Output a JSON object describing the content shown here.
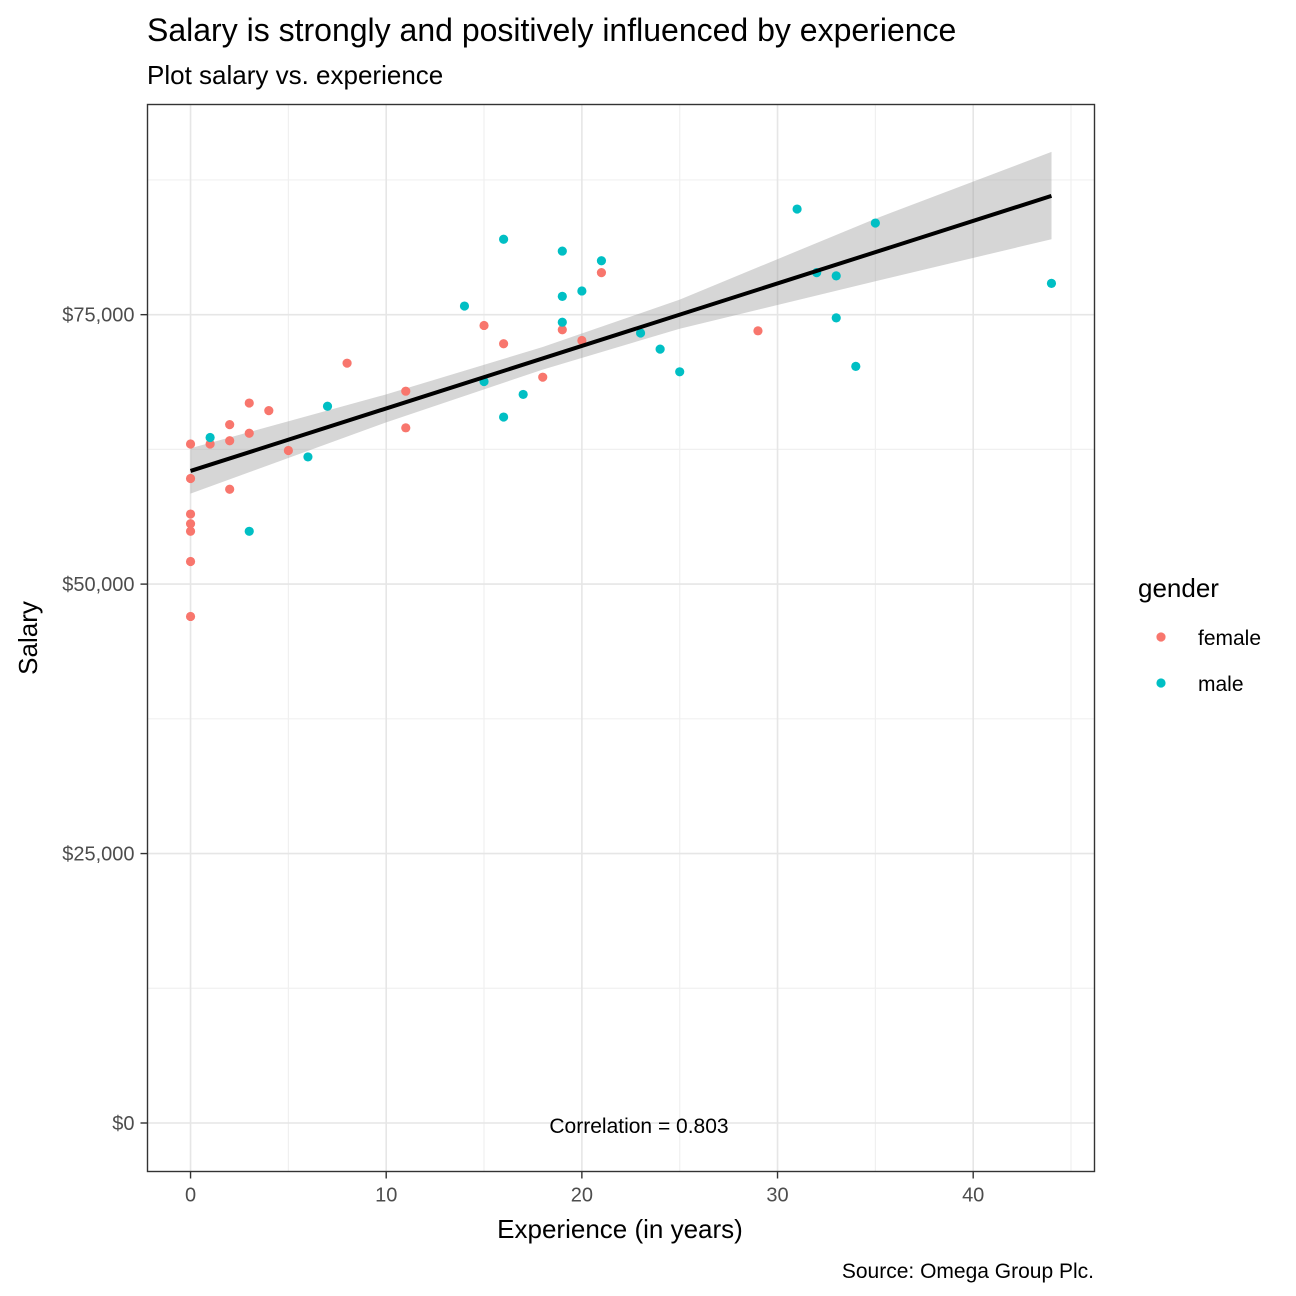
{
  "chart_data": {
    "type": "scatter",
    "title": "Salary is strongly and positively influenced by experience",
    "subtitle": "Plot salary vs. experience",
    "xlabel": "Experience (in years)",
    "ylabel": "Salary",
    "caption": "Source: Omega Group Plc.",
    "annotation": "Correlation =  0.803",
    "xlim": [
      -2.2,
      46.2
    ],
    "ylim": [
      -4500,
      94500
    ],
    "x_ticks": [
      0,
      10,
      20,
      30,
      40
    ],
    "x_tick_labels": [
      "0",
      "10",
      "20",
      "30",
      "40"
    ],
    "y_ticks": [
      0,
      25000,
      50000,
      75000
    ],
    "y_tick_labels": [
      "$0",
      "$25,000",
      "$50,000",
      "$75,000"
    ],
    "grid": true,
    "legend": {
      "title": "gender",
      "position": "right"
    },
    "colors": {
      "female": "#F8766D",
      "male": "#00BFC4",
      "fit_line": "#000000",
      "ribbon": "#999999"
    },
    "trend_line": {
      "intercept": 60500,
      "slope": 580,
      "x_range": [
        0,
        44
      ]
    },
    "confidence_band": [
      {
        "x": 0,
        "lower": 58400,
        "upper": 62600
      },
      {
        "x": 10,
        "lower": 65000,
        "upper": 67600
      },
      {
        "x": 18,
        "lower": 69900,
        "upper": 72000
      },
      {
        "x": 25,
        "lower": 73700,
        "upper": 76400
      },
      {
        "x": 35,
        "lower": 78100,
        "upper": 83900
      },
      {
        "x": 44,
        "lower": 82000,
        "upper": 90100
      }
    ],
    "series": [
      {
        "name": "female",
        "points": [
          {
            "x": 0,
            "y": 63000
          },
          {
            "x": 0,
            "y": 59800
          },
          {
            "x": 0,
            "y": 56500
          },
          {
            "x": 0,
            "y": 55600
          },
          {
            "x": 0,
            "y": 54900
          },
          {
            "x": 0,
            "y": 52100
          },
          {
            "x": 0,
            "y": 47000
          },
          {
            "x": 1,
            "y": 63000
          },
          {
            "x": 2,
            "y": 64800
          },
          {
            "x": 2,
            "y": 63300
          },
          {
            "x": 2,
            "y": 58800
          },
          {
            "x": 3,
            "y": 66800
          },
          {
            "x": 3,
            "y": 64000
          },
          {
            "x": 4,
            "y": 66100
          },
          {
            "x": 5,
            "y": 62400
          },
          {
            "x": 8,
            "y": 70500
          },
          {
            "x": 11,
            "y": 67900
          },
          {
            "x": 11,
            "y": 64500
          },
          {
            "x": 15,
            "y": 74000
          },
          {
            "x": 16,
            "y": 72300
          },
          {
            "x": 18,
            "y": 69200
          },
          {
            "x": 19,
            "y": 73600
          },
          {
            "x": 20,
            "y": 72600
          },
          {
            "x": 21,
            "y": 78900
          },
          {
            "x": 29,
            "y": 73500
          }
        ]
      },
      {
        "name": "male",
        "points": [
          {
            "x": 1,
            "y": 63600
          },
          {
            "x": 3,
            "y": 54900
          },
          {
            "x": 6,
            "y": 61800
          },
          {
            "x": 7,
            "y": 66500
          },
          {
            "x": 14,
            "y": 75800
          },
          {
            "x": 15,
            "y": 68800
          },
          {
            "x": 16,
            "y": 82000
          },
          {
            "x": 16,
            "y": 65500
          },
          {
            "x": 17,
            "y": 67600
          },
          {
            "x": 19,
            "y": 80900
          },
          {
            "x": 19,
            "y": 76700
          },
          {
            "x": 19,
            "y": 74300
          },
          {
            "x": 20,
            "y": 77200
          },
          {
            "x": 21,
            "y": 80000
          },
          {
            "x": 23,
            "y": 73300
          },
          {
            "x": 24,
            "y": 71800
          },
          {
            "x": 25,
            "y": 69700
          },
          {
            "x": 31,
            "y": 84800
          },
          {
            "x": 32,
            "y": 78900
          },
          {
            "x": 33,
            "y": 78600
          },
          {
            "x": 33,
            "y": 74700
          },
          {
            "x": 34,
            "y": 70200
          },
          {
            "x": 35,
            "y": 83500
          },
          {
            "x": 44,
            "y": 77900
          }
        ]
      }
    ]
  }
}
